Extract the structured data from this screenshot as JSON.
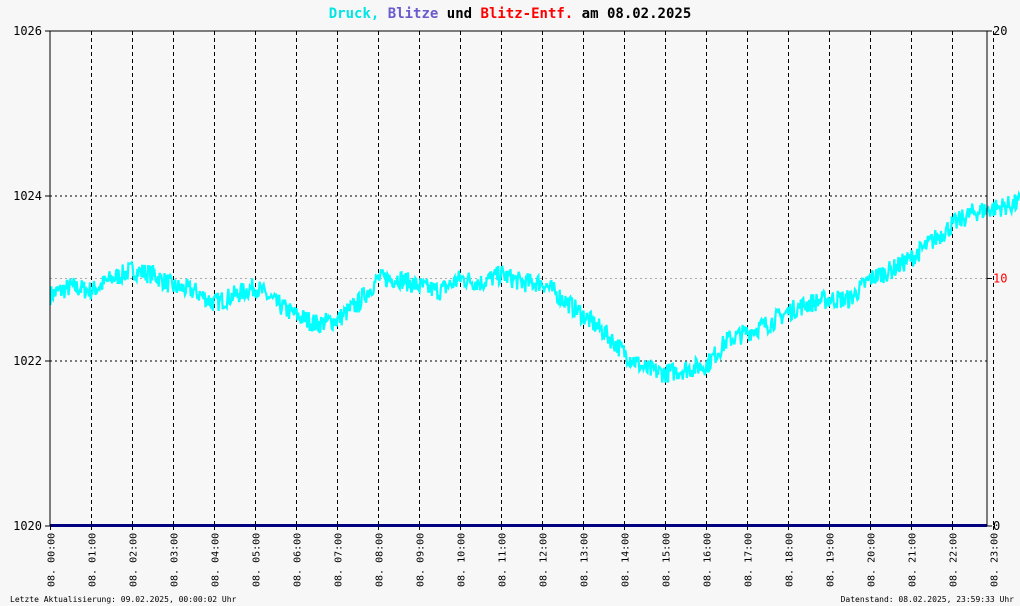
{
  "title": {
    "part1": "Druck,",
    "part2": "Blitze",
    "part3": "und",
    "part4": "Blitz-Entf.",
    "part5": "am 08.02.2025",
    "colors": {
      "druck": "#00e5e5",
      "blitze": "#6a5acd",
      "blitz_entf": "#ff0000",
      "text": "#000000"
    }
  },
  "footer": {
    "left": "Letzte Aktualisierung: 09.02.2025, 00:00:02 Uhr",
    "right": "Datenstand: 08.02.2025, 23:59:33 Uhr"
  },
  "chart_data": {
    "type": "line",
    "y_left": {
      "min": 1020,
      "max": 1026,
      "ticks": [
        "1020",
        "1022",
        "1024",
        "1026"
      ]
    },
    "y_right": {
      "min": 0,
      "max": 20,
      "ticks": [
        "0",
        "10",
        "20"
      ],
      "color_10": "#ff0000"
    },
    "x_ticks": [
      "08. 00:00",
      "08. 01:00",
      "08. 02:00",
      "08. 03:00",
      "08. 04:00",
      "08. 05:00",
      "08. 06:00",
      "08. 07:00",
      "08. 08:00",
      "08. 09:00",
      "08. 10:00",
      "08. 11:00",
      "08. 12:00",
      "08. 13:00",
      "08. 14:00",
      "08. 15:00",
      "08. 16:00",
      "08. 17:00",
      "08. 18:00",
      "08. 19:00",
      "08. 20:00",
      "08. 21:00",
      "08. 22:00",
      "08. 23:00"
    ],
    "series": [
      {
        "name": "Druck",
        "color": "#00ffff",
        "x_hours": [
          0,
          0.5,
          1,
          1.5,
          2,
          2.5,
          3,
          3.5,
          4,
          4.5,
          5,
          5.5,
          6,
          6.5,
          7,
          7.5,
          8,
          8.5,
          9,
          9.5,
          10,
          10.5,
          11,
          11.5,
          12,
          12.5,
          13,
          13.5,
          14,
          14.5,
          15,
          15.5,
          16,
          16.5,
          17,
          17.5,
          18,
          18.5,
          19,
          19.5,
          20,
          20.5,
          21,
          21.5,
          22,
          22.5,
          23,
          23.5,
          23.8
        ],
        "values": [
          1022.8,
          1022.9,
          1022.85,
          1023.0,
          1023.1,
          1023.05,
          1022.9,
          1022.85,
          1022.7,
          1022.8,
          1022.9,
          1022.7,
          1022.55,
          1022.45,
          1022.5,
          1022.7,
          1023.0,
          1023.0,
          1022.9,
          1022.85,
          1023.0,
          1022.95,
          1023.05,
          1022.95,
          1022.95,
          1022.75,
          1022.55,
          1022.35,
          1022.1,
          1021.9,
          1021.85,
          1021.9,
          1021.95,
          1022.25,
          1022.35,
          1022.45,
          1022.6,
          1022.7,
          1022.75,
          1022.75,
          1023.0,
          1023.1,
          1023.25,
          1023.45,
          1023.65,
          1023.8,
          1023.85,
          1023.9,
          1023.95
        ],
        "noise": 0.12
      },
      {
        "name": "Blitze",
        "color": "#000080",
        "values": [
          0
        ]
      },
      {
        "name": "Blitz-Entf.",
        "color": "#ff0000",
        "values": []
      }
    ],
    "grid": true
  }
}
